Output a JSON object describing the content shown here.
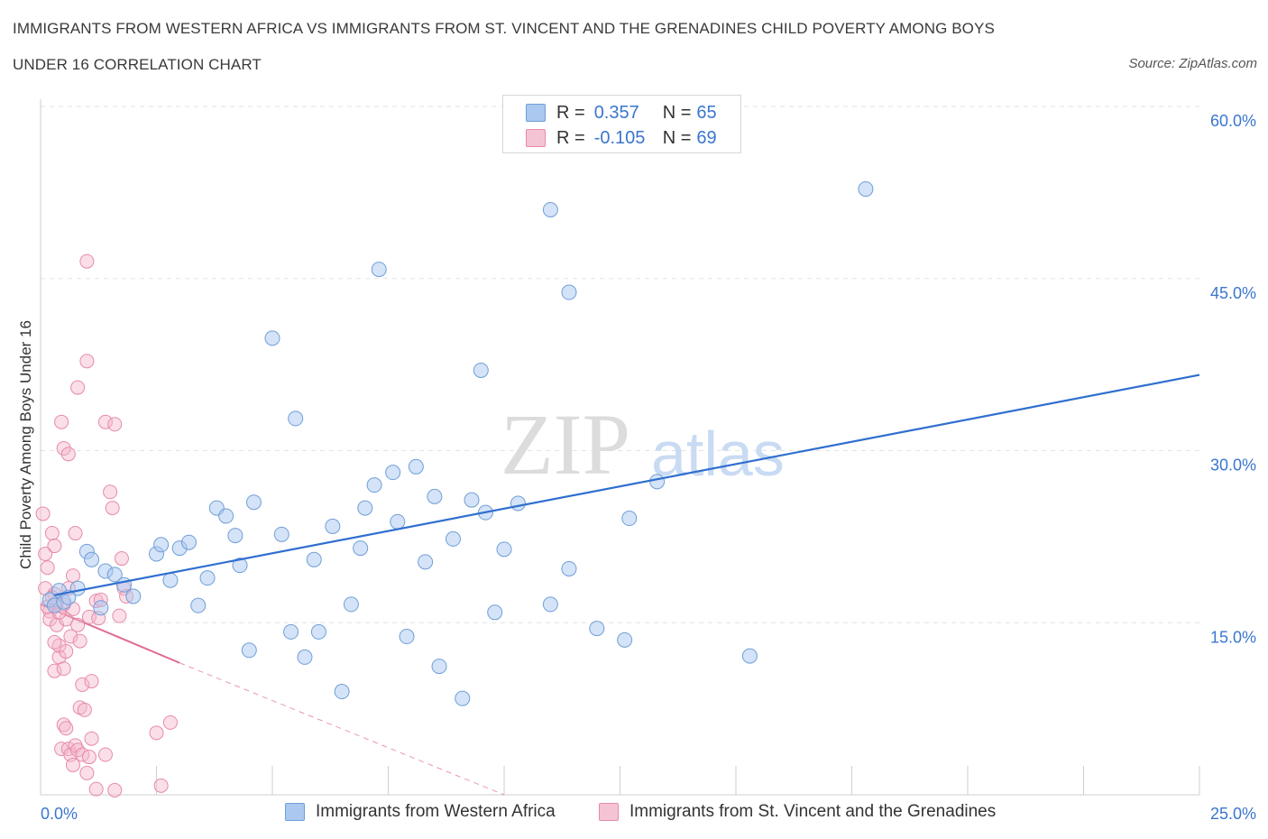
{
  "header": {
    "title_line1": "IMMIGRANTS FROM WESTERN AFRICA VS IMMIGRANTS FROM ST. VINCENT AND THE GRENADINES CHILD POVERTY AMONG BOYS",
    "title_line2": "UNDER 16 CORRELATION CHART",
    "source": "Source: ZipAtlas.com"
  },
  "legend": {
    "blue": {
      "r_label": "R =",
      "r_value": "0.357",
      "n_label": "N =",
      "n_value": "65"
    },
    "pink": {
      "r_label": "R =",
      "r_value": "-0.105",
      "n_label": "N =",
      "n_value": "69"
    }
  },
  "bottom_legend": {
    "blue": "Immigrants from Western Africa",
    "pink": "Immigrants from St. Vincent and the Grenadines"
  },
  "watermark": {
    "zip": "ZIP",
    "atlas": "atlas"
  },
  "colors": {
    "blue_fill": "#aac8f0",
    "blue_stroke": "#6f9fd8",
    "blue_line": "#2f6fcf",
    "pink_fill": "#f5b8cb",
    "pink_stroke": "#e88aa8",
    "pink_line": "#e06a96",
    "tick_label": "#3a76cf",
    "grid": "#e2e2e2"
  },
  "chart_data": {
    "type": "scatter",
    "ylabel": "Child Poverty Among Boys Under 16",
    "xlabel": "",
    "xlim": [
      0,
      25
    ],
    "ylim": [
      0,
      60
    ],
    "x_tick_labels": [
      {
        "value": 0,
        "label": "0.0%"
      },
      {
        "value": 25,
        "label": "25.0%"
      }
    ],
    "y_tick_labels": [
      {
        "value": 15,
        "label": "15.0%"
      },
      {
        "value": 30,
        "label": "30.0%"
      },
      {
        "value": 45,
        "label": "45.0%"
      },
      {
        "value": 60,
        "label": "60.0%"
      }
    ],
    "grid": true,
    "legend_position": "top-center",
    "series": [
      {
        "name": "Immigrants from Western Africa",
        "color": "blue",
        "trend": {
          "x": [
            0.3,
            25.0
          ],
          "y": [
            17.4,
            36.6
          ]
        },
        "points": [
          [
            0.2,
            17.0
          ],
          [
            0.3,
            16.5
          ],
          [
            0.4,
            17.8
          ],
          [
            0.5,
            16.8
          ],
          [
            0.8,
            18.0
          ],
          [
            1.0,
            21.2
          ],
          [
            1.1,
            20.5
          ],
          [
            1.3,
            16.3
          ],
          [
            1.4,
            19.5
          ],
          [
            1.6,
            19.2
          ],
          [
            1.8,
            18.3
          ],
          [
            2.0,
            17.3
          ],
          [
            2.5,
            21.0
          ],
          [
            2.6,
            21.8
          ],
          [
            2.8,
            18.7
          ],
          [
            3.0,
            21.5
          ],
          [
            3.2,
            22.0
          ],
          [
            3.4,
            16.5
          ],
          [
            3.6,
            18.9
          ],
          [
            3.8,
            25.0
          ],
          [
            4.0,
            24.3
          ],
          [
            4.2,
            22.6
          ],
          [
            4.3,
            20.0
          ],
          [
            4.5,
            12.6
          ],
          [
            4.6,
            25.5
          ],
          [
            5.0,
            39.8
          ],
          [
            5.2,
            22.7
          ],
          [
            5.4,
            14.2
          ],
          [
            5.5,
            32.8
          ],
          [
            5.7,
            12.0
          ],
          [
            5.9,
            20.5
          ],
          [
            6.0,
            14.2
          ],
          [
            6.3,
            23.4
          ],
          [
            6.5,
            9.0
          ],
          [
            6.7,
            16.6
          ],
          [
            6.9,
            21.5
          ],
          [
            7.0,
            25.0
          ],
          [
            7.2,
            27.0
          ],
          [
            7.3,
            45.8
          ],
          [
            7.6,
            28.1
          ],
          [
            7.7,
            23.8
          ],
          [
            7.9,
            13.8
          ],
          [
            8.1,
            28.6
          ],
          [
            8.3,
            20.3
          ],
          [
            8.5,
            26.0
          ],
          [
            8.6,
            11.2
          ],
          [
            8.9,
            22.3
          ],
          [
            9.1,
            8.4
          ],
          [
            9.3,
            25.7
          ],
          [
            9.5,
            37.0
          ],
          [
            9.6,
            24.6
          ],
          [
            9.8,
            15.9
          ],
          [
            10.0,
            21.4
          ],
          [
            10.3,
            25.4
          ],
          [
            11.0,
            51.0
          ],
          [
            11.0,
            16.6
          ],
          [
            11.4,
            43.8
          ],
          [
            11.4,
            19.7
          ],
          [
            12.0,
            14.5
          ],
          [
            12.6,
            13.5
          ],
          [
            12.7,
            24.1
          ],
          [
            13.3,
            27.3
          ],
          [
            15.3,
            12.1
          ],
          [
            17.8,
            52.8
          ],
          [
            0.6,
            17.2
          ]
        ]
      },
      {
        "name": "Immigrants from St. Vincent and the Grenadines",
        "color": "pink",
        "trend": {
          "x": [
            0.0,
            3.0
          ],
          "y": [
            16.6,
            11.5
          ]
        },
        "trend_extension": {
          "x": [
            3.0,
            10.0
          ],
          "y": [
            11.5,
            0.0
          ]
        },
        "points": [
          [
            0.05,
            24.5
          ],
          [
            0.1,
            21.0
          ],
          [
            0.15,
            19.8
          ],
          [
            0.1,
            18.0
          ],
          [
            0.2,
            16.0
          ],
          [
            0.2,
            15.3
          ],
          [
            0.25,
            22.8
          ],
          [
            0.3,
            21.7
          ],
          [
            0.3,
            17.5
          ],
          [
            0.35,
            16.8
          ],
          [
            0.35,
            14.8
          ],
          [
            0.4,
            12.0
          ],
          [
            0.3,
            10.8
          ],
          [
            0.4,
            13.0
          ],
          [
            0.45,
            32.5
          ],
          [
            0.5,
            30.2
          ],
          [
            0.5,
            11.0
          ],
          [
            0.55,
            15.3
          ],
          [
            0.6,
            29.7
          ],
          [
            0.55,
            12.5
          ],
          [
            0.6,
            18.0
          ],
          [
            0.65,
            13.8
          ],
          [
            0.7,
            16.2
          ],
          [
            0.75,
            22.8
          ],
          [
            0.7,
            19.1
          ],
          [
            0.8,
            35.5
          ],
          [
            0.8,
            14.8
          ],
          [
            0.85,
            13.4
          ],
          [
            0.85,
            7.6
          ],
          [
            0.9,
            9.6
          ],
          [
            1.0,
            46.5
          ],
          [
            1.0,
            37.8
          ],
          [
            0.95,
            7.4
          ],
          [
            1.05,
            15.5
          ],
          [
            1.1,
            9.9
          ],
          [
            1.2,
            16.9
          ],
          [
            1.25,
            15.4
          ],
          [
            1.3,
            17.0
          ],
          [
            1.4,
            32.5
          ],
          [
            1.5,
            26.4
          ],
          [
            1.55,
            25.0
          ],
          [
            1.6,
            32.3
          ],
          [
            1.7,
            15.6
          ],
          [
            1.75,
            20.6
          ],
          [
            1.8,
            18.0
          ],
          [
            1.85,
            17.3
          ],
          [
            0.45,
            4.0
          ],
          [
            0.5,
            6.1
          ],
          [
            0.55,
            5.8
          ],
          [
            0.6,
            4.0
          ],
          [
            0.65,
            3.5
          ],
          [
            0.7,
            2.6
          ],
          [
            0.75,
            4.3
          ],
          [
            0.8,
            3.9
          ],
          [
            0.9,
            3.5
          ],
          [
            1.0,
            1.9
          ],
          [
            1.05,
            3.3
          ],
          [
            1.1,
            4.9
          ],
          [
            1.2,
            0.5
          ],
          [
            1.4,
            3.5
          ],
          [
            1.6,
            0.4
          ],
          [
            2.5,
            5.4
          ],
          [
            2.6,
            0.8
          ],
          [
            2.8,
            6.3
          ],
          [
            0.15,
            16.4
          ],
          [
            0.25,
            17.2
          ],
          [
            0.4,
            15.9
          ],
          [
            0.5,
            16.6
          ],
          [
            0.3,
            13.3
          ]
        ]
      }
    ]
  }
}
